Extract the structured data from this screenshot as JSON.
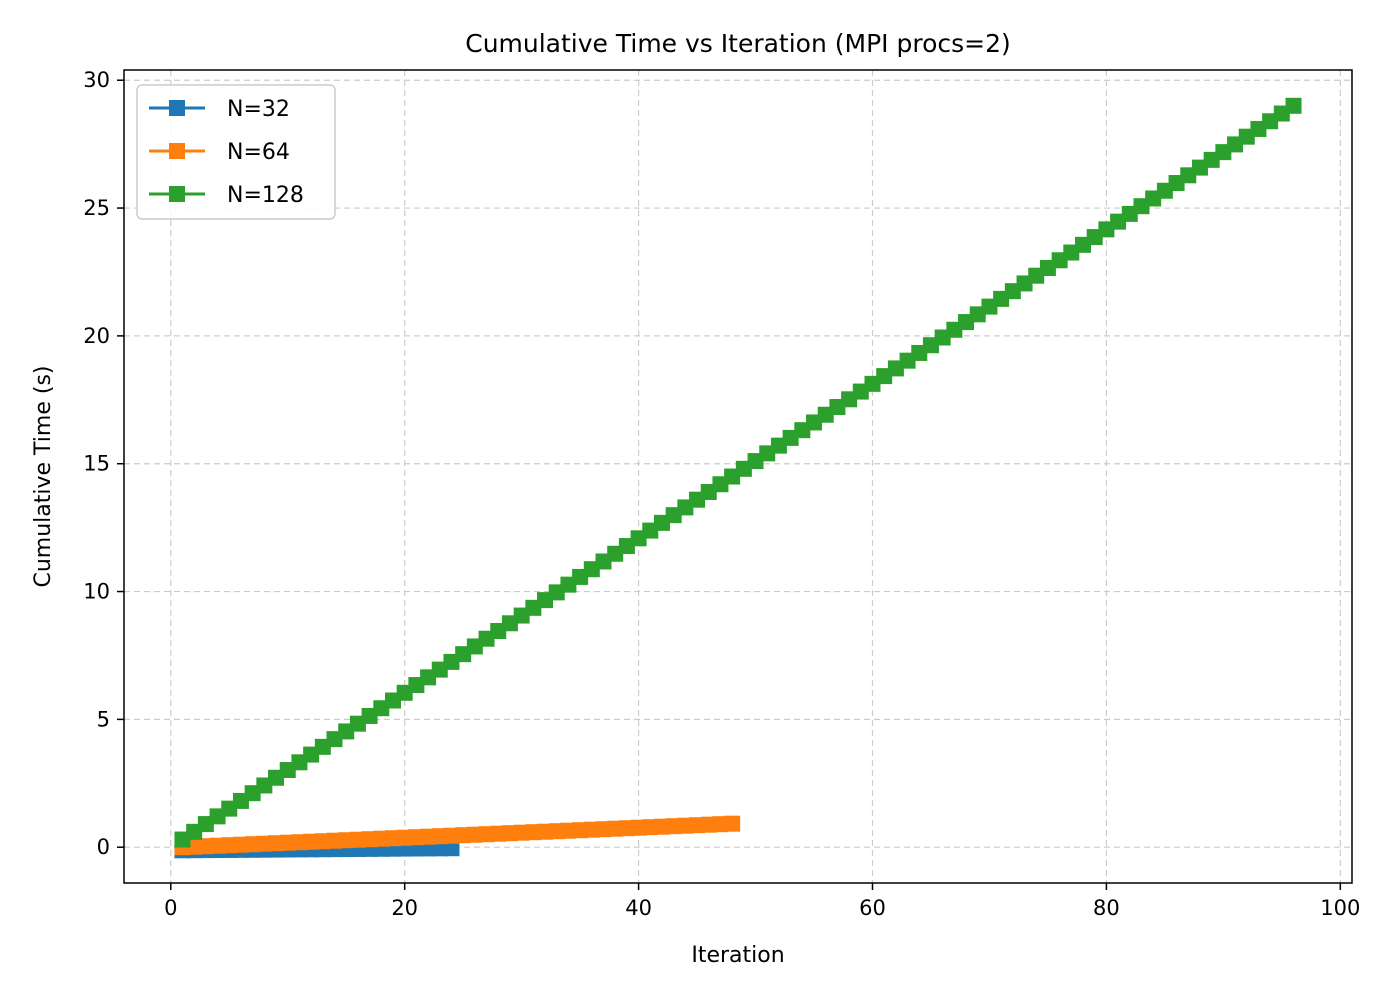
{
  "chart_data": {
    "type": "line",
    "title": "Cumulative Time vs Iteration (MPI procs=2)",
    "xlabel": "Iteration",
    "ylabel": "Cumulative Time (s)",
    "xlim": [
      -4,
      101
    ],
    "ylim": [
      -1.4,
      30.4
    ],
    "xticks": [
      0,
      20,
      40,
      60,
      80,
      100
    ],
    "yticks": [
      0,
      5,
      10,
      15,
      20,
      25,
      30
    ],
    "xtick_labels": [
      "0",
      "20",
      "40",
      "60",
      "80",
      "100"
    ],
    "ytick_labels": [
      "0",
      "5",
      "10",
      "15",
      "20",
      "25",
      "30"
    ],
    "grid": true,
    "legend_position": "upper-left",
    "marker": "square",
    "series": [
      {
        "name": "N=32",
        "color": "#1f77b4",
        "x_start": 1,
        "x_end": 24,
        "x_step": 1,
        "y_start": -0.12,
        "y_end": -0.04
      },
      {
        "name": "N=64",
        "color": "#ff7f0e",
        "x_start": 1,
        "x_end": 48,
        "x_step": 1,
        "y_start": 0.0,
        "y_end": 0.92
      },
      {
        "name": "N=128",
        "color": "#2ca02c",
        "x_start": 1,
        "x_end": 96,
        "x_step": 1,
        "y_start": 0.3,
        "y_end": 29.0
      }
    ]
  }
}
